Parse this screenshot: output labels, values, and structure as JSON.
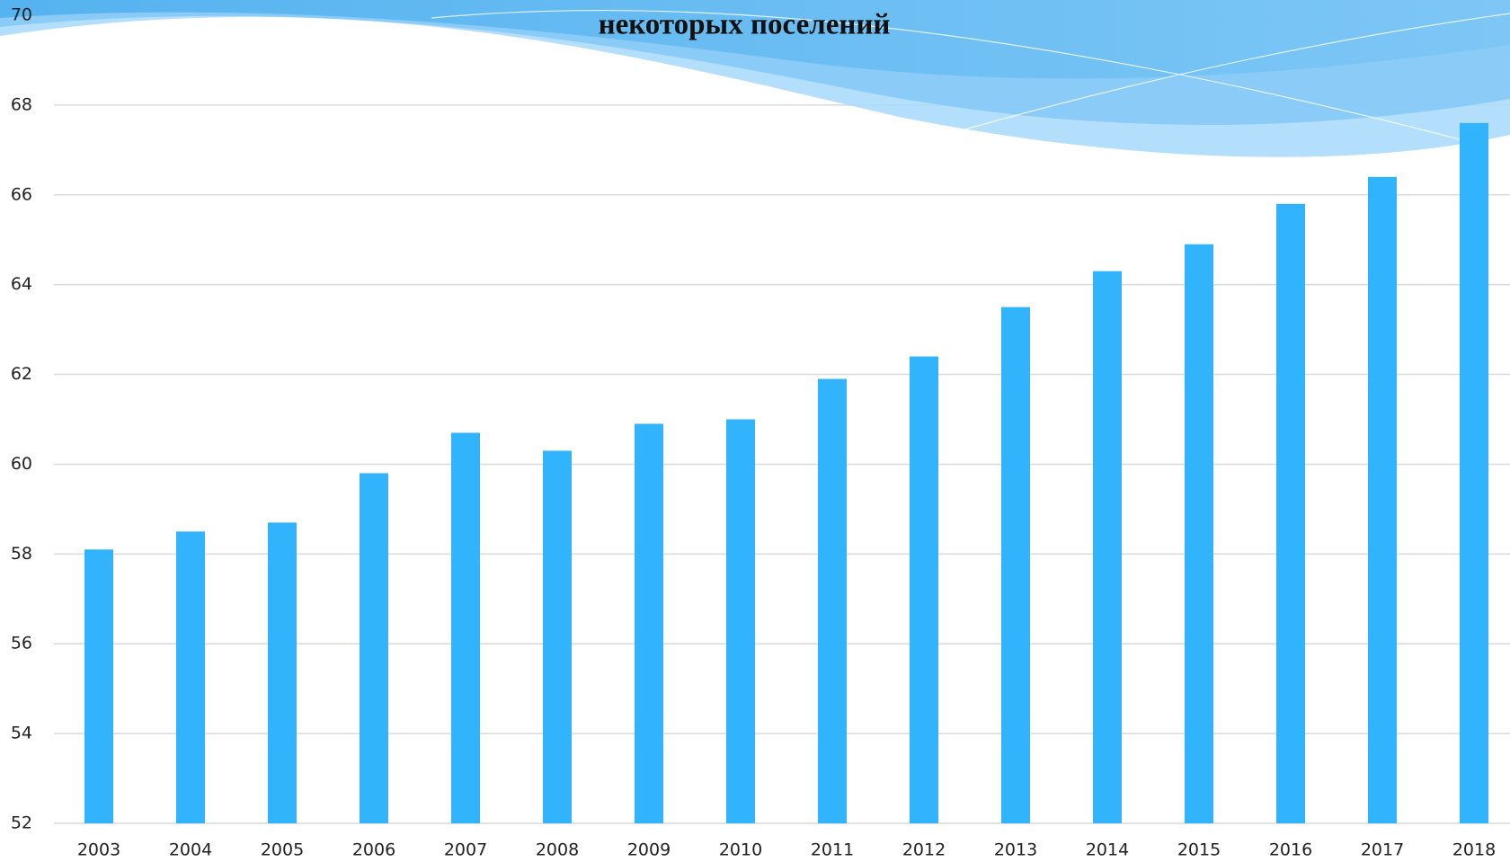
{
  "chart_data": {
    "type": "bar",
    "title": "некоторых поселений",
    "categories": [
      "2003",
      "2004",
      "2005",
      "2006",
      "2007",
      "2008",
      "2009",
      "2010",
      "2011",
      "2012",
      "2013",
      "2014",
      "2015",
      "2016",
      "2017",
      "2018"
    ],
    "values": [
      58.1,
      58.5,
      58.7,
      59.8,
      60.7,
      60.3,
      60.9,
      61.0,
      61.9,
      62.4,
      63.5,
      64.3,
      64.9,
      65.8,
      66.4,
      67.6
    ],
    "color": "#31b4fb",
    "ylim": [
      52,
      70
    ],
    "yticks": [
      52,
      54,
      56,
      58,
      60,
      62,
      64,
      66,
      68,
      70
    ],
    "grid": true
  }
}
